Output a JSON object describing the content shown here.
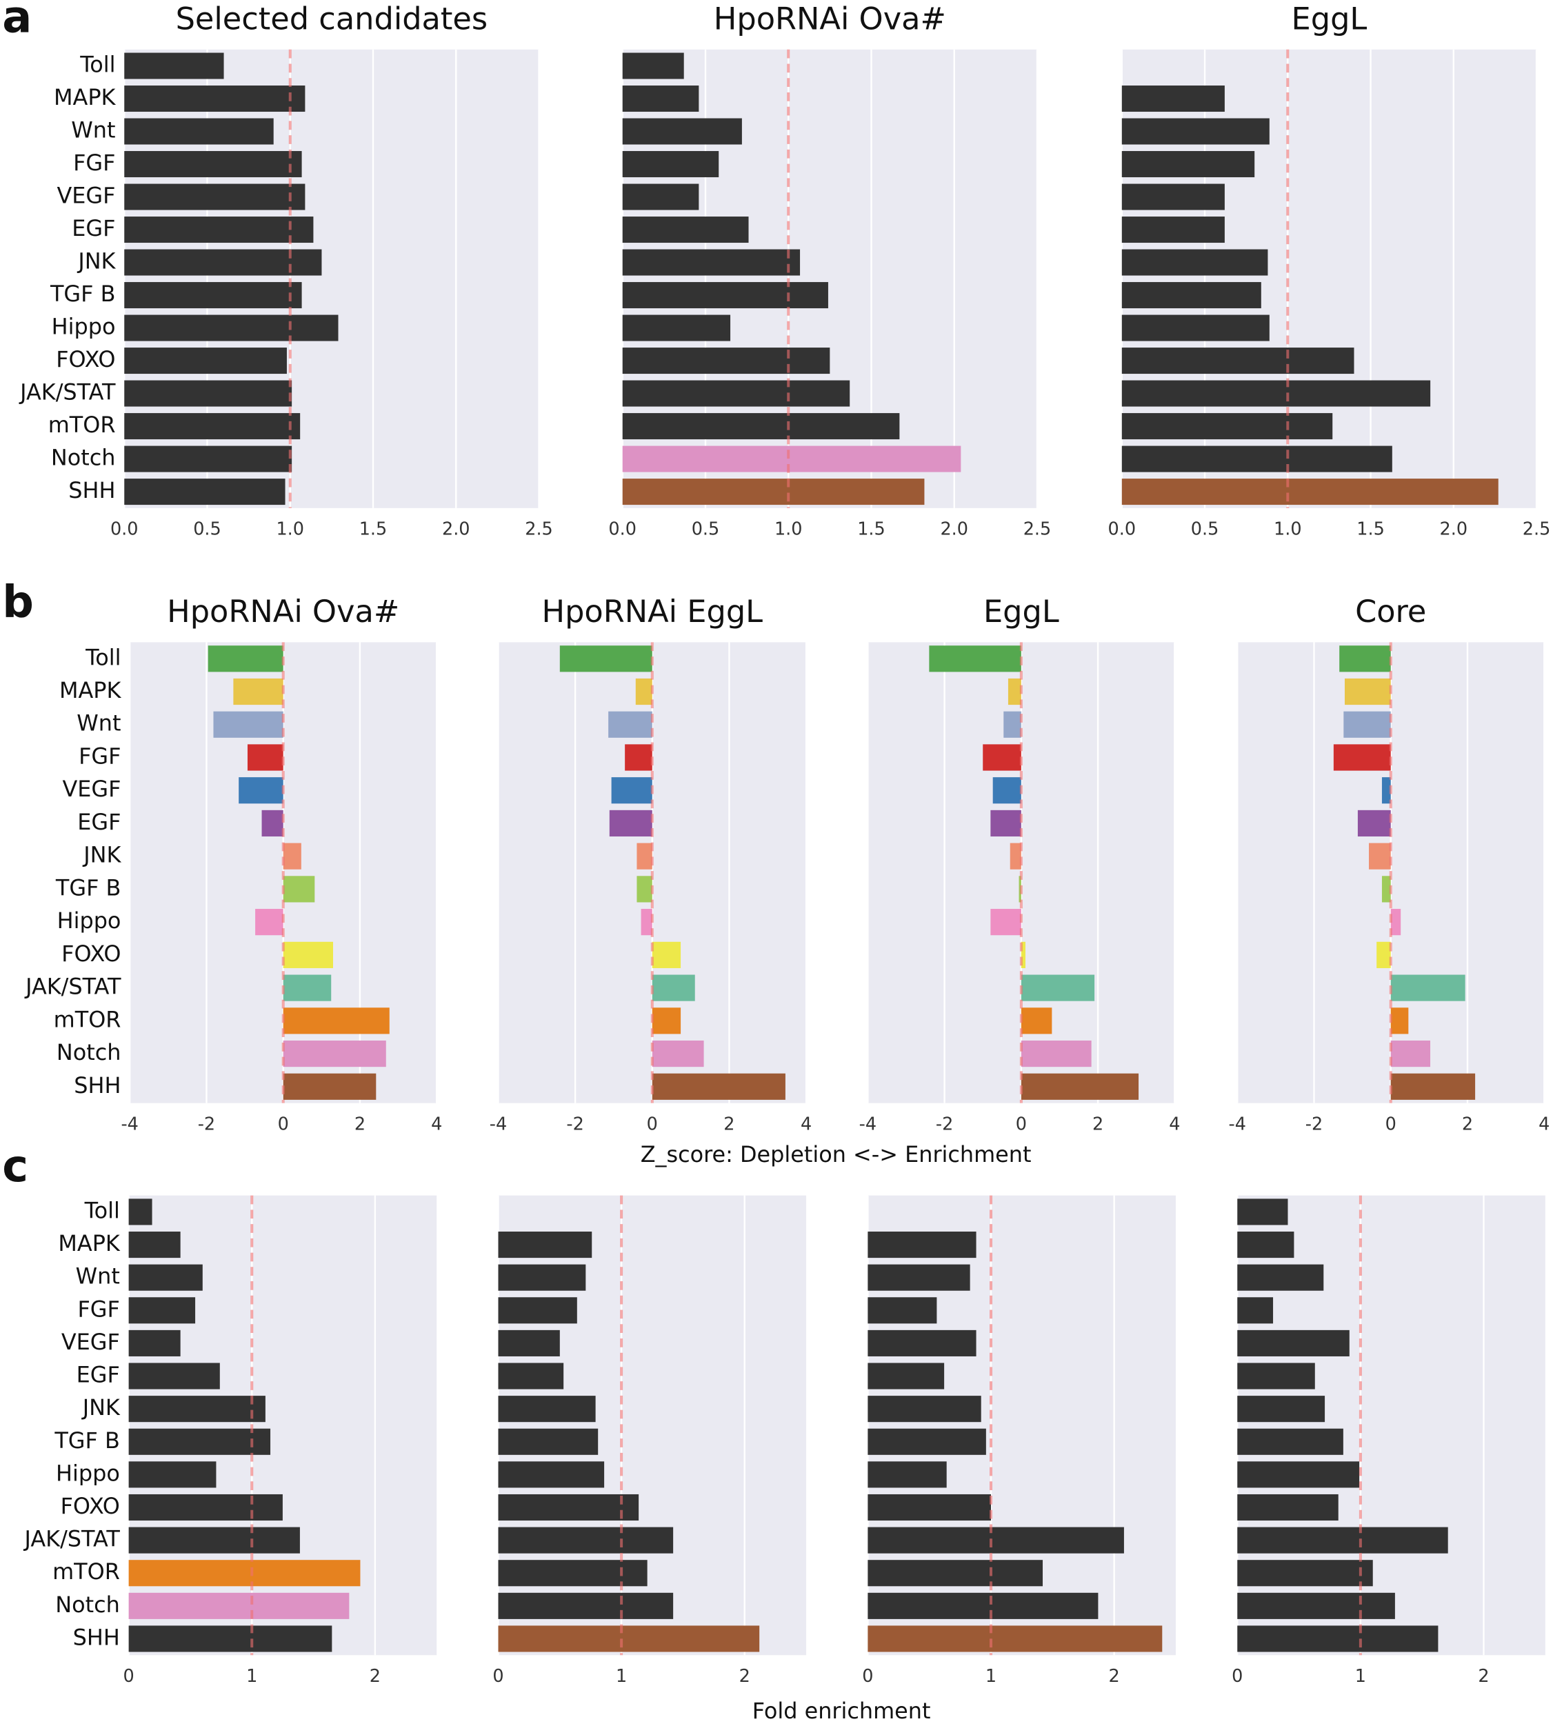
{
  "panel_labels": [
    "a",
    "b",
    "c"
  ],
  "row_labels": [
    "Z_score: Depletion <-> Enrichment",
    "Fold enrichment"
  ],
  "chart_data": [
    {
      "type": "bar",
      "title": "Selected candidates",
      "categories": [
        "Toll",
        "MAPK",
        "Wnt",
        "FGF",
        "VEGF",
        "EGF",
        "JNK",
        "TGF B",
        "Hippo",
        "FOXO",
        "JAK/STAT",
        "mTOR",
        "Notch",
        "SHH"
      ],
      "values": [
        0.6,
        1.09,
        0.9,
        1.07,
        1.09,
        1.14,
        1.19,
        1.07,
        1.29,
        0.98,
        1.01,
        1.06,
        1.01,
        0.97
      ],
      "colors": [
        "#333333",
        "#333333",
        "#333333",
        "#333333",
        "#333333",
        "#333333",
        "#333333",
        "#333333",
        "#333333",
        "#333333",
        "#333333",
        "#333333",
        "#333333",
        "#333333"
      ],
      "xlim": [
        0,
        2.5
      ],
      "xticks": [
        {
          "value": 0,
          "label": "0.0"
        },
        0.5,
        {
          "value": 1,
          "label": "1.0"
        },
        1.5,
        {
          "value": 2,
          "label": "2.0"
        },
        2.5
      ],
      "ref_line": 1,
      "grid": true
    },
    {
      "type": "bar",
      "title": "HpoRNAi Ova#",
      "values": [
        0.37,
        0.46,
        0.72,
        0.58,
        0.46,
        0.76,
        1.07,
        1.24,
        0.65,
        1.25,
        1.37,
        1.67,
        2.04,
        1.82
      ],
      "colors": [
        "#333333",
        "#333333",
        "#333333",
        "#333333",
        "#333333",
        "#333333",
        "#333333",
        "#333333",
        "#333333",
        "#333333",
        "#333333",
        "#333333",
        "#dd92c4",
        "#9c5a35"
      ],
      "xlim": [
        0,
        2.5
      ],
      "xticks": [
        {
          "value": 0,
          "label": "0.0"
        },
        0.5,
        {
          "value": 1,
          "label": "1.0"
        },
        1.5,
        {
          "value": 2,
          "label": "2.0"
        },
        2.5
      ],
      "ref_line": 1,
      "grid": true
    },
    {
      "type": "bar",
      "title": "EggL",
      "values": [
        0,
        0.62,
        0.89,
        0.8,
        0.62,
        0.62,
        0.88,
        0.84,
        0.89,
        1.4,
        1.86,
        1.27,
        1.63,
        2.27
      ],
      "colors": [
        "#333333",
        "#333333",
        "#333333",
        "#333333",
        "#333333",
        "#333333",
        "#333333",
        "#333333",
        "#333333",
        "#333333",
        "#333333",
        "#333333",
        "#333333",
        "#9c5a35"
      ],
      "xlim": [
        0,
        2.5
      ],
      "xticks": [
        {
          "value": 0,
          "label": "0.0"
        },
        0.5,
        {
          "value": 1,
          "label": "1.0"
        },
        1.5,
        {
          "value": 2,
          "label": "2.0"
        },
        2.5
      ],
      "ref_line": 1,
      "grid": true
    },
    {
      "type": "bar",
      "title": "HpoRNAi Ova#",
      "categories": [
        "Toll",
        "MAPK",
        "Wnt",
        "FGF",
        "VEGF",
        "EGF",
        "JNK",
        "TGF B",
        "Hippo",
        "FOXO",
        "JAK/STAT",
        "mTOR",
        "Notch",
        "SHH"
      ],
      "values": [
        -1.96,
        -1.3,
        -1.82,
        -0.93,
        -1.16,
        -0.56,
        0.47,
        0.82,
        -0.73,
        1.3,
        1.25,
        2.77,
        2.68,
        2.42
      ],
      "colors": [
        "#55a84f",
        "#e8c54a",
        "#94a6c9",
        "#d12f2e",
        "#3c7bb6",
        "#8f53a0",
        "#ee8f70",
        "#9fcb5a",
        "#ee8fc3",
        "#ede84a",
        "#6cbb9d",
        "#e6821f",
        "#dd92c4",
        "#9c5a35"
      ],
      "xlim": [
        -4,
        4
      ],
      "xticks": [
        -4,
        -2,
        0,
        2,
        4
      ],
      "ref_line": 0,
      "grid": true
    },
    {
      "type": "bar",
      "title": "HpoRNAi EggL",
      "values": [
        -2.4,
        -0.43,
        -1.14,
        -0.71,
        -1.06,
        -1.11,
        -0.4,
        -0.4,
        -0.29,
        0.74,
        1.11,
        0.74,
        1.34,
        3.46
      ],
      "colors": [
        "#55a84f",
        "#e8c54a",
        "#94a6c9",
        "#d12f2e",
        "#3c7bb6",
        "#8f53a0",
        "#ee8f70",
        "#9fcb5a",
        "#ee8fc3",
        "#ede84a",
        "#6cbb9d",
        "#e6821f",
        "#dd92c4",
        "#9c5a35"
      ],
      "xlim": [
        -4,
        4
      ],
      "xticks": [
        -4,
        -2,
        0,
        2,
        4
      ],
      "ref_line": 0,
      "grid": true
    },
    {
      "type": "bar",
      "title": "EggL",
      "values": [
        -2.4,
        -0.34,
        -0.46,
        -1.0,
        -0.74,
        -0.8,
        -0.29,
        -0.06,
        -0.8,
        0.11,
        1.91,
        0.8,
        1.83,
        3.06
      ],
      "colors": [
        "#55a84f",
        "#e8c54a",
        "#94a6c9",
        "#d12f2e",
        "#3c7bb6",
        "#8f53a0",
        "#ee8f70",
        "#9fcb5a",
        "#ee8fc3",
        "#ede84a",
        "#6cbb9d",
        "#e6821f",
        "#dd92c4",
        "#9c5a35"
      ],
      "xlim": [
        -4,
        4
      ],
      "xticks": [
        -4,
        -2,
        0,
        2,
        4
      ],
      "ref_line": 0,
      "grid": true
    },
    {
      "type": "bar",
      "title": "Core",
      "values": [
        -1.34,
        -1.2,
        -1.23,
        -1.49,
        -0.23,
        -0.86,
        -0.57,
        -0.23,
        0.26,
        -0.37,
        1.94,
        0.46,
        1.03,
        2.2
      ],
      "colors": [
        "#55a84f",
        "#e8c54a",
        "#94a6c9",
        "#d12f2e",
        "#3c7bb6",
        "#8f53a0",
        "#ee8f70",
        "#9fcb5a",
        "#ee8fc3",
        "#ede84a",
        "#6cbb9d",
        "#e6821f",
        "#dd92c4",
        "#9c5a35"
      ],
      "xlim": [
        -4,
        4
      ],
      "xticks": [
        -4,
        -2,
        0,
        2,
        4
      ],
      "ref_line": 0,
      "grid": true
    },
    {
      "type": "bar",
      "categories": [
        "Toll",
        "MAPK",
        "Wnt",
        "FGF",
        "VEGF",
        "EGF",
        "JNK",
        "TGF B",
        "Hippo",
        "FOXO",
        "JAK/STAT",
        "mTOR",
        "Notch",
        "SHH"
      ],
      "values": [
        0.19,
        0.42,
        0.6,
        0.54,
        0.42,
        0.74,
        1.11,
        1.15,
        0.71,
        1.25,
        1.39,
        1.88,
        1.79,
        1.65
      ],
      "colors": [
        "#333333",
        "#333333",
        "#333333",
        "#333333",
        "#333333",
        "#333333",
        "#333333",
        "#333333",
        "#333333",
        "#333333",
        "#333333",
        "#e6821f",
        "#dd92c4",
        "#333333"
      ],
      "xlim": [
        0,
        2.5
      ],
      "xticks": [
        0,
        1,
        2
      ],
      "ref_line": 1,
      "grid": true
    },
    {
      "type": "bar",
      "values": [
        0,
        0.76,
        0.71,
        0.64,
        0.5,
        0.53,
        0.79,
        0.81,
        0.86,
        1.14,
        1.42,
        1.21,
        1.42,
        2.12
      ],
      "colors": [
        "#333333",
        "#333333",
        "#333333",
        "#333333",
        "#333333",
        "#333333",
        "#333333",
        "#333333",
        "#333333",
        "#333333",
        "#333333",
        "#333333",
        "#333333",
        "#9c5a35"
      ],
      "xlim": [
        0,
        2.5
      ],
      "xticks": [
        0,
        1,
        2
      ],
      "ref_line": 1,
      "grid": true
    },
    {
      "type": "bar",
      "values": [
        0,
        0.88,
        0.83,
        0.56,
        0.88,
        0.62,
        0.92,
        0.96,
        0.64,
        1.0,
        2.08,
        1.42,
        1.87,
        2.39
      ],
      "colors": [
        "#333333",
        "#333333",
        "#333333",
        "#333333",
        "#333333",
        "#333333",
        "#333333",
        "#333333",
        "#333333",
        "#333333",
        "#333333",
        "#333333",
        "#333333",
        "#9c5a35"
      ],
      "xlim": [
        0,
        2.5
      ],
      "xticks": [
        0,
        1,
        2
      ],
      "ref_line": 1,
      "grid": true
    },
    {
      "type": "bar",
      "values": [
        0.41,
        0.46,
        0.7,
        0.29,
        0.91,
        0.63,
        0.71,
        0.86,
        0.99,
        0.82,
        1.71,
        1.1,
        1.28,
        1.63
      ],
      "colors": [
        "#333333",
        "#333333",
        "#333333",
        "#333333",
        "#333333",
        "#333333",
        "#333333",
        "#333333",
        "#333333",
        "#333333",
        "#333333",
        "#333333",
        "#333333",
        "#333333"
      ],
      "xlim": [
        0,
        2.5
      ],
      "xticks": [
        0,
        1,
        2
      ],
      "ref_line": 1,
      "grid": true
    }
  ]
}
